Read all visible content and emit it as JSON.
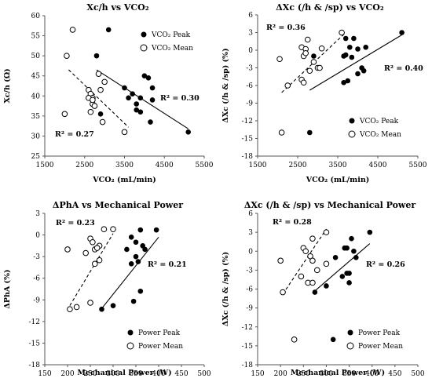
{
  "chart_data": [
    {
      "type": "scatter",
      "title": "Xc/h vs VCO₂",
      "xlabel": "VCO₂ (mL/min)",
      "ylabel": "Xc/h (Ω)",
      "xlim": [
        1500,
        5500
      ],
      "ylim": [
        25,
        60
      ],
      "xticks": [
        "1500",
        "2500",
        "3500",
        "4500",
        "5500"
      ],
      "yticks": [
        "25",
        "30",
        "35",
        "40",
        "45",
        "50",
        "55",
        "60"
      ],
      "legend_position": "top-right",
      "series": [
        {
          "name": "VCO₂ Peak",
          "marker": "filled",
          "x": [
            3100,
            2800,
            3500,
            3700,
            3800,
            3900,
            4000,
            4100,
            3600,
            3800,
            4200,
            4150,
            4200,
            3900,
            5100,
            2900
          ],
          "y": [
            56.5,
            50,
            42,
            40.5,
            38,
            36,
            45,
            44.5,
            39.5,
            36.5,
            42,
            33.5,
            39,
            39.5,
            31,
            35.5
          ],
          "fit": {
            "x": [
              2800,
              5100
            ],
            "y": [
              46.5,
              31.8
            ]
          },
          "r2": "R² = 0.30"
        },
        {
          "name": "VCO₂ Mean",
          "marker": "open",
          "x": [
            2200,
            2050,
            2000,
            2600,
            2650,
            2700,
            2650,
            2700,
            2750,
            2850,
            2900,
            2950,
            3000,
            3500,
            2600,
            2700
          ],
          "y": [
            56.5,
            50,
            35.5,
            41.5,
            40.5,
            39.5,
            36,
            38,
            37.5,
            45.5,
            41.5,
            33.5,
            43.5,
            31,
            39.5,
            39
          ],
          "fit": {
            "x": [
              2100,
              3600
            ],
            "y": [
              46.5,
              32.2
            ]
          },
          "r2": "R² = 0.27"
        }
      ]
    },
    {
      "type": "scatter",
      "title": "ΔXc (/h & /sp) vs VCO₂",
      "xlabel": "VCO₂ (mL/min)",
      "ylabel": "ΔXc (/h & /sp) (%)",
      "xlim": [
        1500,
        5500
      ],
      "ylim": [
        -18,
        6
      ],
      "xticks": [
        "1500",
        "2500",
        "3500",
        "4500",
        "5500"
      ],
      "yticks": [
        "-18",
        "-15",
        "-12",
        "-9",
        "-6",
        "-3",
        "0",
        "3",
        "6"
      ],
      "legend_position": "bottom-right",
      "series": [
        {
          "name": "VCO₂ Peak",
          "marker": "filled",
          "x": [
            3700,
            3900,
            3800,
            4000,
            3650,
            3700,
            3850,
            4200,
            4100,
            4150,
            4000,
            5100,
            3650,
            3750,
            2800,
            2900
          ],
          "y": [
            2,
            2,
            0.5,
            0.2,
            -1,
            -0.8,
            -1.2,
            0.5,
            -3,
            -3.5,
            -4,
            3,
            -5.5,
            -5.2,
            -14,
            -1
          ],
          "fit": {
            "x": [
              2800,
              5100
            ],
            "y": [
              -6.8,
              2.6
            ]
          },
          "r2": "R² = 0.40"
        },
        {
          "name": "VCO₂ Mean",
          "marker": "open",
          "x": [
            2050,
            2600,
            2700,
            2750,
            2650,
            2700,
            2800,
            2900,
            3000,
            3600,
            2600,
            2650,
            3100,
            2100,
            2250,
            3050
          ],
          "y": [
            -1.5,
            0.5,
            0.2,
            1.8,
            -1,
            -0.5,
            -3.5,
            -2,
            -3,
            3,
            -5,
            -5.5,
            0.3,
            -14,
            -6,
            -3
          ],
          "fit": {
            "x": [
              2100,
              3700
            ],
            "y": [
              -7.2,
              3.0
            ]
          },
          "r2": "R² = 0.36"
        }
      ]
    },
    {
      "type": "scatter",
      "title": "ΔPhA vs Mechanical Power",
      "xlabel": "Mechanical Power (W)",
      "ylabel": "ΔPhA (%)",
      "xlim": [
        150,
        500
      ],
      "ylim": [
        -18,
        3
      ],
      "xticks": [
        "150",
        "200",
        "250",
        "300",
        "350",
        "400",
        "450",
        "500"
      ],
      "yticks": [
        "-18",
        "-15",
        "-12",
        "-9",
        "-6",
        "-3",
        "0",
        "3"
      ],
      "legend_position": "bottom-right",
      "series": [
        {
          "name": "Power Peak",
          "marker": "filled",
          "x": [
            360,
            395,
            340,
            350,
            365,
            330,
            370,
            340,
            350,
            355,
            300,
            345,
            275,
            360
          ],
          "y": [
            0.7,
            0.7,
            -0.3,
            -1,
            -1.5,
            -2,
            -2,
            -4,
            -3,
            -3.7,
            -9.8,
            -9.2,
            -10.3,
            -7.8
          ],
          "fit": {
            "x": [
              275,
              400
            ],
            "y": [
              -10.2,
              -0.3
            ]
          },
          "r2": "R² = 0.21"
        },
        {
          "name": "Power Mean",
          "marker": "open",
          "x": [
            200,
            240,
            260,
            270,
            280,
            300,
            250,
            255,
            265,
            260,
            270,
            250,
            205,
            220
          ],
          "y": [
            -2,
            -2.5,
            -2,
            -1.5,
            0.8,
            0.8,
            -0.5,
            -1,
            -1.8,
            -4,
            -3.5,
            -9.4,
            -10.3,
            -10
          ],
          "fit": {
            "x": [
              205,
              300
            ],
            "y": [
              -9.8,
              0.2
            ]
          },
          "r2": "R² = 0.23"
        }
      ]
    },
    {
      "type": "scatter",
      "title": "ΔXc (/h & /sp) vs Mechanical Power",
      "xlabel": "Mechanical Power (W)",
      "ylabel": "ΔXc (/h & /sp) (%)",
      "xlim": [
        150,
        500
      ],
      "ylim": [
        -18,
        6
      ],
      "xticks": [
        "150",
        "200",
        "250",
        "300",
        "350",
        "400",
        "450",
        "500"
      ],
      "yticks": [
        "-18",
        "-15",
        "-12",
        "-9",
        "-6",
        "-3",
        "0",
        "3",
        "6"
      ],
      "legend_position": "bottom-right",
      "series": [
        {
          "name": "Power Peak",
          "marker": "filled",
          "x": [
            395,
            355,
            340,
            345,
            360,
            320,
            365,
            335,
            345,
            350,
            300,
            350,
            275,
            315
          ],
          "y": [
            3,
            2,
            0.5,
            0.5,
            0,
            -1,
            -1,
            -4,
            -3.5,
            -3.5,
            -5.5,
            -5,
            -6.5,
            -14
          ],
          "fit": {
            "x": [
              275,
              395
            ],
            "y": [
              -6.3,
              1.2
            ]
          },
          "r2": "R² = 0.26"
        },
        {
          "name": "Power Mean",
          "marker": "open",
          "x": [
            200,
            250,
            270,
            255,
            265,
            300,
            270,
            245,
            260,
            205,
            230,
            270,
            280,
            300
          ],
          "y": [
            -1.5,
            0.5,
            2,
            0,
            -0.8,
            3,
            -1.5,
            -4,
            -5,
            -6.5,
            -14,
            -5,
            -3,
            -2
          ],
          "fit": {
            "x": [
              205,
              300
            ],
            "y": [
              -6.8,
              3.5
            ]
          },
          "r2": "R² = 0.28"
        }
      ]
    }
  ]
}
